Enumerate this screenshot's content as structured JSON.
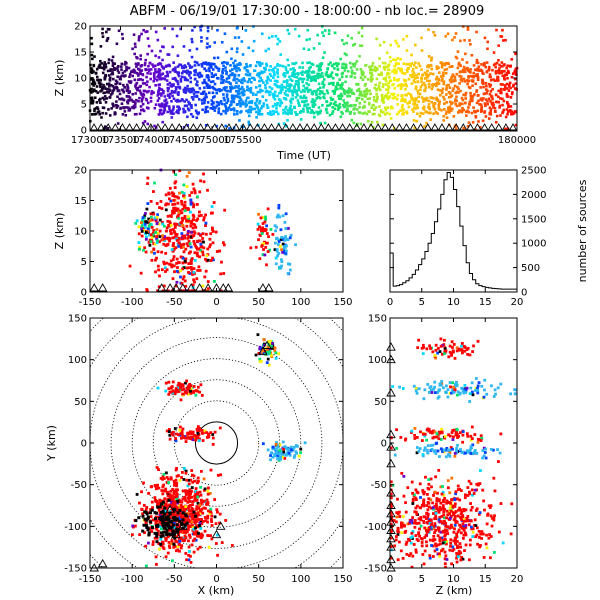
{
  "title": "ABFM - 06/19/01 17:30:00 - 18:00:00 - nb loc.=  28909",
  "chart_data": [
    {
      "id": "time_height",
      "type": "scatter",
      "xlabel": "Time (UT)",
      "ylabel": "Z (km)",
      "xlim": [
        173000,
        180000
      ],
      "ylim": [
        0,
        20
      ],
      "xticks": [
        "173000",
        "173500",
        "174000",
        "174500",
        "175000",
        "175500",
        "180000"
      ],
      "yticks": [
        "0",
        "5",
        "10",
        "15",
        "20"
      ],
      "color_by": "time",
      "color_ramp": [
        "#000000",
        "#6a00c8",
        "#0040ff",
        "#00d8ff",
        "#00e070",
        "#f8f000",
        "#ff7000",
        "#ff0000"
      ],
      "z_dense_range": [
        3,
        13
      ],
      "sources": 28909
    },
    {
      "id": "x_z",
      "type": "scatter",
      "xlabel": "",
      "ylabel": "Z (km)",
      "xlim": [
        -150,
        150
      ],
      "ylim": [
        0,
        20
      ],
      "xticks": [
        "-150",
        "-100",
        "-50",
        "0",
        "50",
        "100",
        "150"
      ],
      "yticks": [
        "0",
        "5",
        "10",
        "15",
        "20"
      ],
      "clusters": [
        {
          "x": -40,
          "z": 9,
          "sx": 20,
          "sz": 5,
          "color": "red"
        },
        {
          "x": 55,
          "z": 9,
          "sx": 5,
          "sz": 2,
          "color": "red"
        },
        {
          "x": 78,
          "z": 8,
          "sx": 6,
          "sz": 2.5,
          "color": "cyan"
        },
        {
          "x": -80,
          "z": 10,
          "sx": 8,
          "sz": 2,
          "color": "mixed"
        }
      ]
    },
    {
      "id": "histogram",
      "type": "bar",
      "xlabel": "",
      "ylabel": "number of sources",
      "xlim": [
        0,
        20
      ],
      "ylim": [
        0,
        2500
      ],
      "xticks": [
        "0",
        "5",
        "10",
        "15",
        "20"
      ],
      "yticks": [
        "0",
        "500",
        "1000",
        "1500",
        "2000",
        "2500"
      ],
      "x": [
        0,
        0.5,
        1,
        1.5,
        2,
        2.5,
        3,
        3.5,
        4,
        4.5,
        5,
        5.5,
        6,
        6.5,
        7,
        7.5,
        8,
        8.5,
        9,
        9.5,
        10,
        10.5,
        11,
        11.5,
        12,
        12.5,
        13,
        13.5,
        14,
        14.5,
        15,
        15.5,
        16,
        16.5,
        17,
        17.5,
        18,
        18.5,
        19,
        19.5
      ],
      "values": [
        800,
        120,
        130,
        150,
        190,
        230,
        290,
        360,
        450,
        560,
        680,
        830,
        1000,
        1200,
        1440,
        1700,
        2000,
        2300,
        2450,
        2350,
        2100,
        1750,
        1350,
        950,
        600,
        380,
        250,
        170,
        130,
        110,
        95,
        85,
        75,
        70,
        65,
        60,
        60,
        60,
        60,
        60
      ]
    },
    {
      "id": "plan_view",
      "type": "scatter",
      "xlabel": "X (km)",
      "ylabel": "Y (km)",
      "xlim": [
        -150,
        150
      ],
      "ylim": [
        -150,
        150
      ],
      "xticks": [
        "-150",
        "-100",
        "-50",
        "0",
        "50",
        "100",
        "150"
      ],
      "yticks": [
        "-150",
        "-100",
        "-50",
        "0",
        "50",
        "100",
        "150"
      ],
      "range_rings_km": [
        25,
        50,
        75,
        100,
        125,
        150,
        175,
        200
      ],
      "clusters": [
        {
          "x": -45,
          "y": -85,
          "sx": 20,
          "sy": 22,
          "color": "red"
        },
        {
          "x": -40,
          "y": 65,
          "sx": 10,
          "sy": 5,
          "color": "red"
        },
        {
          "x": -30,
          "y": 10,
          "sx": 14,
          "sy": 4,
          "color": "red"
        },
        {
          "x": 58,
          "y": 110,
          "sx": 6,
          "sy": 7,
          "color": "mixed"
        },
        {
          "x": 80,
          "y": -10,
          "sx": 10,
          "sy": 5,
          "color": "cyan"
        }
      ],
      "stations": [
        [
          -60,
          -95
        ],
        [
          -40,
          -100
        ],
        [
          -48,
          -110
        ],
        [
          5,
          -100
        ],
        [
          0,
          -110
        ],
        [
          -55,
          -80
        ],
        [
          55,
          110
        ],
        [
          60,
          117
        ],
        [
          -135,
          -145
        ],
        [
          -145,
          -150
        ]
      ]
    },
    {
      "id": "z_y",
      "type": "scatter",
      "xlabel": "Z (km)",
      "ylabel": "",
      "xlim": [
        0,
        20
      ],
      "ylim": [
        -150,
        150
      ],
      "xticks": [
        "0",
        "5",
        "10",
        "15",
        "20"
      ],
      "yticks": [
        "-150",
        "-100",
        "-50",
        "0",
        "50",
        "100",
        "150"
      ],
      "clusters": [
        {
          "z": 8,
          "y": -95,
          "sz": 4.5,
          "sy": 25,
          "color": "red"
        },
        {
          "z": 10,
          "y": 65,
          "sz": 4,
          "sy": 5,
          "color": "cyan"
        },
        {
          "z": 8,
          "y": 10,
          "sz": 4,
          "sy": 4,
          "color": "red"
        },
        {
          "z": 10,
          "y": -10,
          "sz": 4,
          "sy": 4,
          "color": "cyan"
        },
        {
          "z": 9,
          "y": 112,
          "sz": 2.5,
          "sy": 5,
          "color": "red"
        }
      ]
    }
  ]
}
